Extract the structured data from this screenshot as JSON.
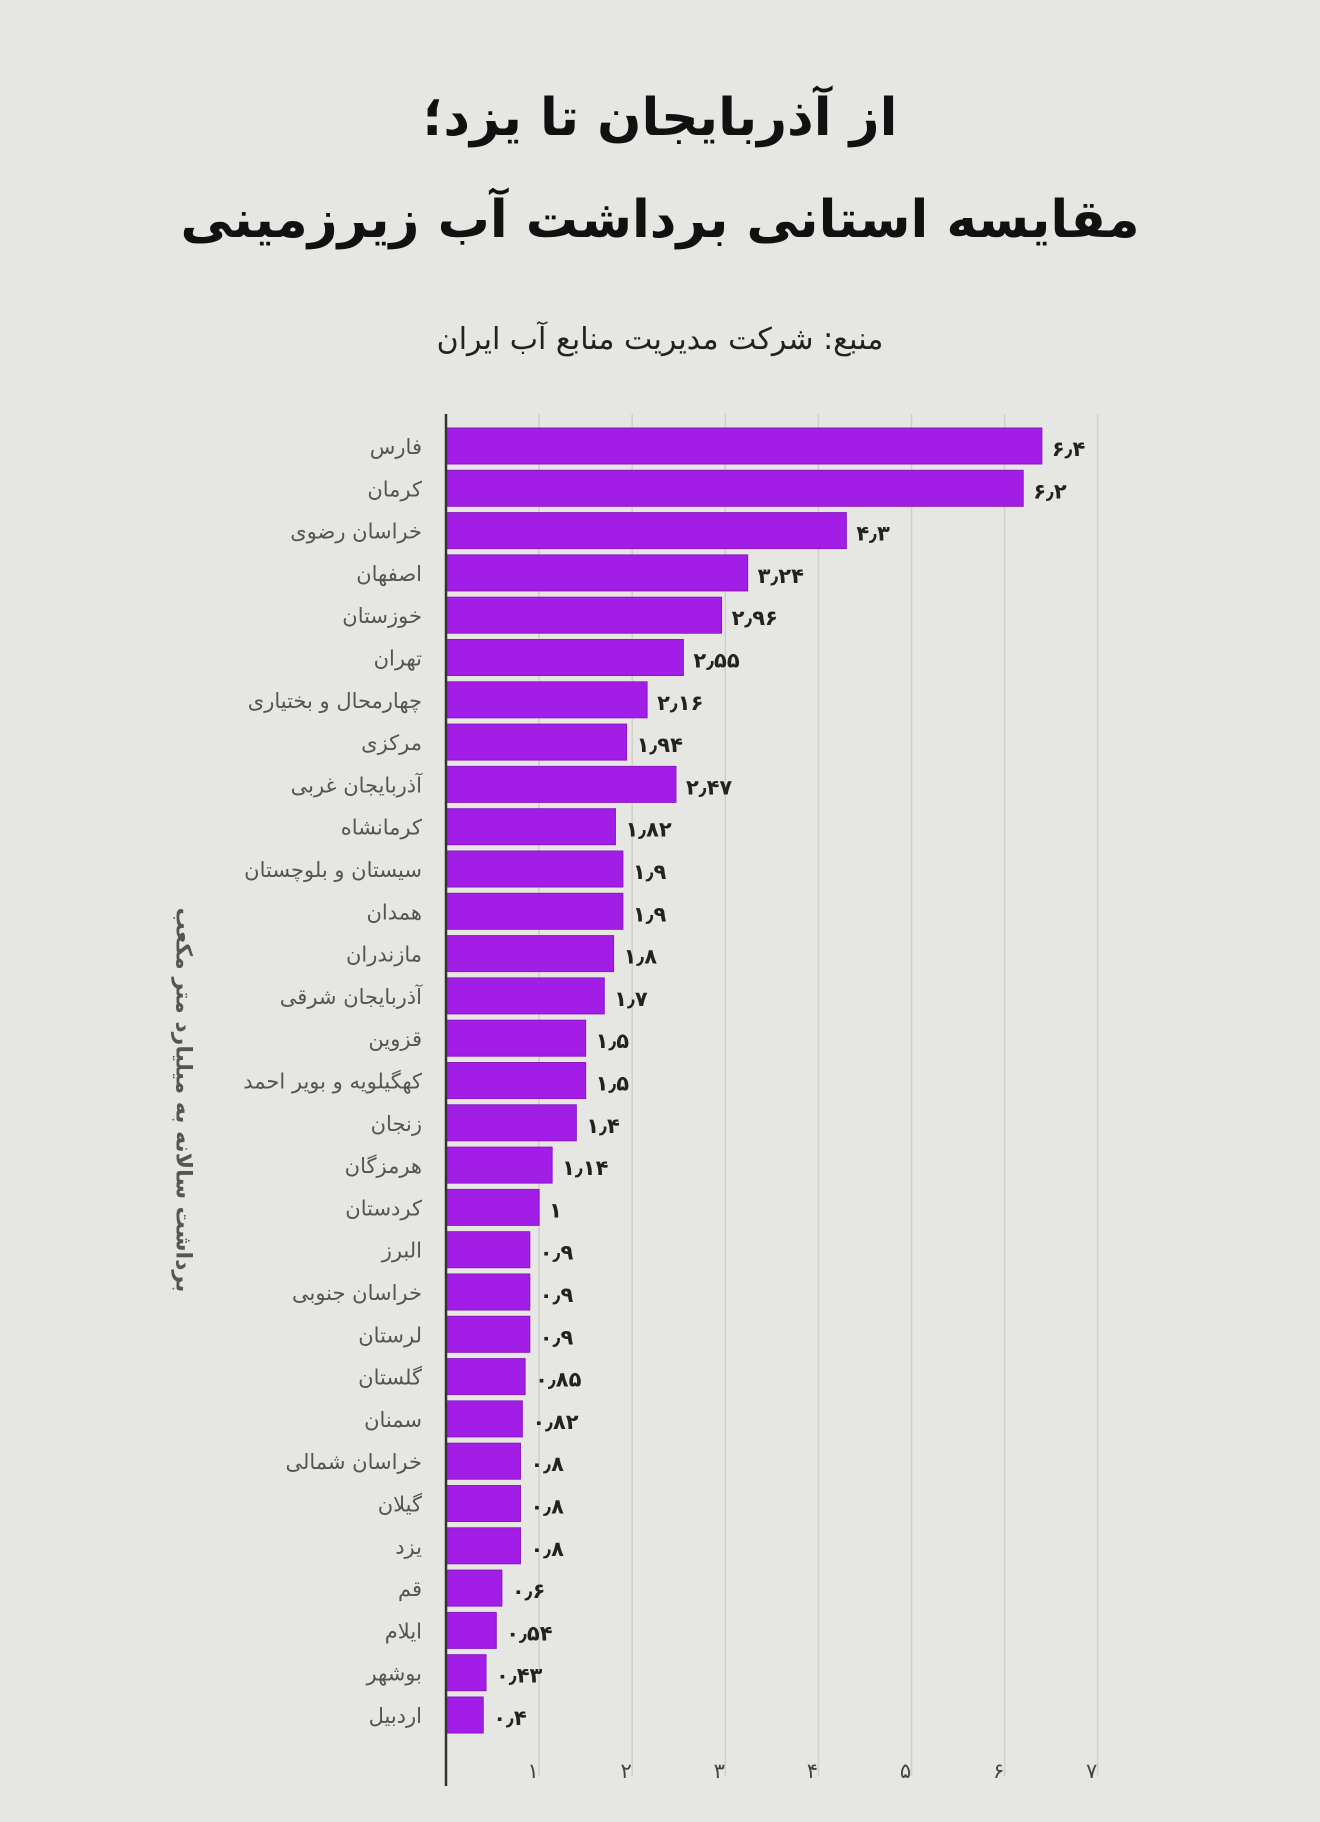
{
  "page": {
    "title_line_1": "از آذربایجان تا یزد؛",
    "title_line_2": "مقایسه استانی برداشت آب زیرزمینی",
    "source": "منبع: شرکت مدیریت منابع آب ایران"
  },
  "colors": {
    "background": "#e6e6e3",
    "bar": "#a21ee6",
    "bar_edge": "#8a17c2",
    "text": "#111111",
    "label": "#555555"
  },
  "chart_data": {
    "type": "bar",
    "orientation": "horizontal",
    "ylabel": "برداشت سالانه به میلیارد متر مکعب",
    "xlim": [
      0,
      7
    ],
    "x_ticks": [
      1,
      2,
      3,
      4,
      5,
      6,
      7
    ],
    "x_tick_labels": [
      "۱",
      "۲",
      "۳",
      "۴",
      "۵",
      "۶",
      "۷"
    ],
    "grid": true,
    "categories": [
      "فارس",
      "کرمان",
      "خراسان رضوی",
      "اصفهان",
      "خوزستان",
      "تهران",
      "چهارمحال و بختیاری",
      "مرکزی",
      "آذربایجان غربی",
      "کرمانشاه",
      "سیستان و بلوچستان",
      "همدان",
      "مازندران",
      "آذربایجان شرقی",
      "قزوین",
      "کهگیلویه و بویر احمد",
      "زنجان",
      "هرمزگان",
      "کردستان",
      "البرز",
      "خراسان جنوبی",
      "لرستان",
      "گلستان",
      "سمنان",
      "خراسان شمالی",
      "گیلان",
      "یزد",
      "قم",
      "ایلام",
      "بوشهر",
      "اردبیل"
    ],
    "values": [
      6.4,
      6.2,
      4.3,
      3.24,
      2.96,
      2.55,
      2.16,
      1.94,
      2.47,
      1.82,
      1.9,
      1.9,
      1.8,
      1.7,
      1.5,
      1.5,
      1.4,
      1.14,
      1,
      0.9,
      0.9,
      0.9,
      0.85,
      0.82,
      0.8,
      0.8,
      0.8,
      0.6,
      0.54,
      0.43,
      0.4
    ],
    "value_labels": [
      "۶٫۴",
      "۶٫۲",
      "۴٫۳",
      "۳٫۲۴",
      "۲٫۹۶",
      "۲٫۵۵",
      "۲٫۱۶",
      "۱٫۹۴",
      "۲٫۴۷",
      "۱٫۸۲",
      "۱٫۹",
      "۱٫۹",
      "۱٫۸",
      "۱٫۷",
      "۱٫۵",
      "۱٫۵",
      "۱٫۴",
      "۱٫۱۴",
      "۱",
      "۰٫۹",
      "۰٫۹",
      "۰٫۹",
      "۰٫۸۵",
      "۰٫۸۲",
      "۰٫۸",
      "۰٫۸",
      "۰٫۸",
      "۰٫۶",
      "۰٫۵۴",
      "۰٫۴۳",
      "۰٫۴"
    ]
  }
}
